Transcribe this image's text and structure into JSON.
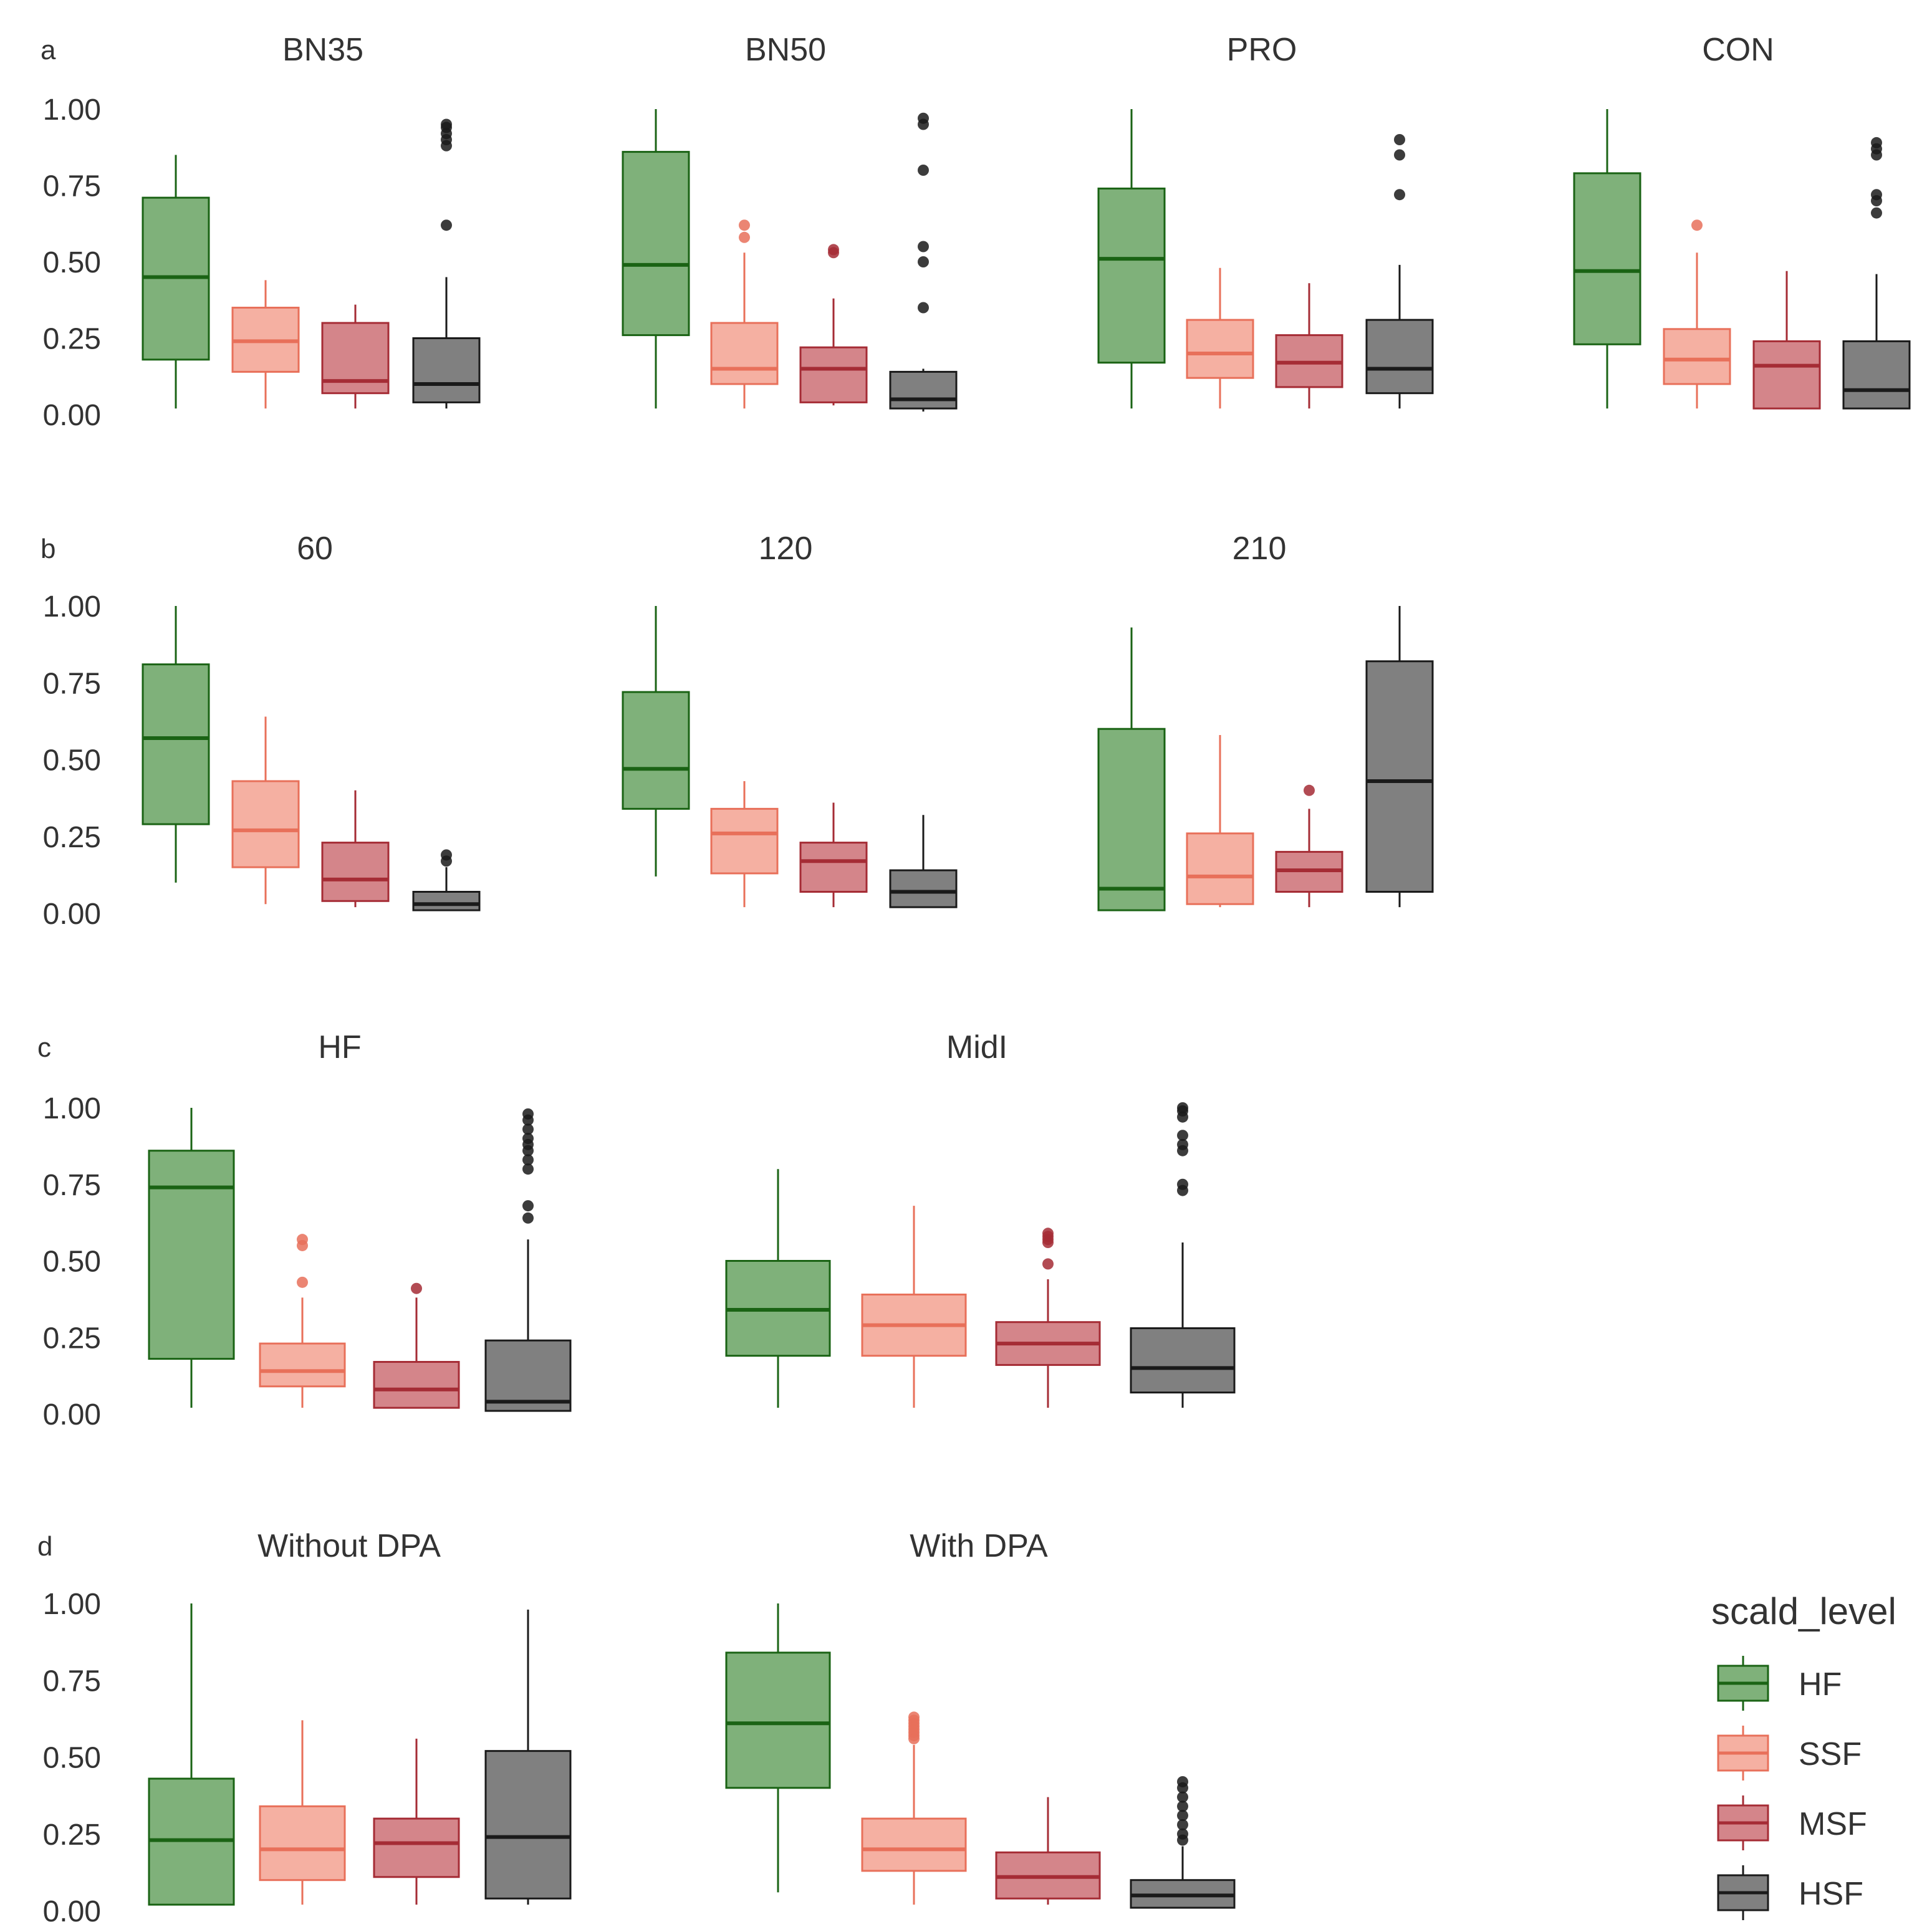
{
  "figure": {
    "legend": {
      "title": "scald_level",
      "items": [
        {
          "key": "HF",
          "label": "HF"
        },
        {
          "key": "SSF",
          "label": "SSF"
        },
        {
          "key": "MSF",
          "label": "MSF"
        },
        {
          "key": "HSF",
          "label": "HSF"
        }
      ]
    },
    "styles": {
      "HF": {
        "fill": "#7fb17a",
        "line": "#1a6314"
      },
      "SSF": {
        "fill": "#f5b0a2",
        "line": "#e8705a"
      },
      "MSF": {
        "fill": "#d4858a",
        "line": "#a52c35"
      },
      "HSF": {
        "fill": "#808080",
        "line": "#1a1a1a"
      }
    }
  },
  "chart_data": [
    {
      "type": "boxplot",
      "panel": "a",
      "ylim": [
        0,
        1
      ],
      "y_ticks": [
        "0.00",
        "0.25",
        "0.50",
        "0.75",
        "1.00"
      ],
      "facets": [
        {
          "title": "BN35",
          "boxes": [
            {
              "group": "HF",
              "lower_whisker": 0.02,
              "q1": 0.18,
              "median": 0.45,
              "q3": 0.71,
              "upper_whisker": 0.85,
              "outliers": []
            },
            {
              "group": "SSF",
              "lower_whisker": 0.02,
              "q1": 0.14,
              "median": 0.24,
              "q3": 0.35,
              "upper_whisker": 0.44,
              "outliers": []
            },
            {
              "group": "MSF",
              "lower_whisker": 0.02,
              "q1": 0.07,
              "median": 0.11,
              "q3": 0.3,
              "upper_whisker": 0.36,
              "outliers": []
            },
            {
              "group": "HSF",
              "lower_whisker": 0.02,
              "q1": 0.04,
              "median": 0.1,
              "q3": 0.25,
              "upper_whisker": 0.45,
              "outliers": [
                0.62,
                0.88,
                0.9,
                0.92,
                0.94,
                0.95
              ]
            }
          ]
        },
        {
          "title": "BN50",
          "boxes": [
            {
              "group": "HF",
              "lower_whisker": 0.02,
              "q1": 0.26,
              "median": 0.49,
              "q3": 0.86,
              "upper_whisker": 1.0,
              "outliers": []
            },
            {
              "group": "SSF",
              "lower_whisker": 0.02,
              "q1": 0.1,
              "median": 0.15,
              "q3": 0.3,
              "upper_whisker": 0.53,
              "outliers": [
                0.58,
                0.62
              ]
            },
            {
              "group": "MSF",
              "lower_whisker": 0.03,
              "q1": 0.04,
              "median": 0.15,
              "q3": 0.22,
              "upper_whisker": 0.38,
              "outliers": [
                0.53,
                0.54
              ]
            },
            {
              "group": "HSF",
              "lower_whisker": 0.01,
              "q1": 0.02,
              "median": 0.05,
              "q3": 0.14,
              "upper_whisker": 0.15,
              "outliers": [
                0.35,
                0.5,
                0.55,
                0.8,
                0.95,
                0.97
              ]
            }
          ]
        },
        {
          "title": "PRO",
          "boxes": [
            {
              "group": "HF",
              "lower_whisker": 0.02,
              "q1": 0.17,
              "median": 0.51,
              "q3": 0.74,
              "upper_whisker": 1.0,
              "outliers": []
            },
            {
              "group": "SSF",
              "lower_whisker": 0.02,
              "q1": 0.12,
              "median": 0.2,
              "q3": 0.31,
              "upper_whisker": 0.48,
              "outliers": []
            },
            {
              "group": "MSF",
              "lower_whisker": 0.02,
              "q1": 0.09,
              "median": 0.17,
              "q3": 0.26,
              "upper_whisker": 0.43,
              "outliers": []
            },
            {
              "group": "HSF",
              "lower_whisker": 0.02,
              "q1": 0.07,
              "median": 0.15,
              "q3": 0.31,
              "upper_whisker": 0.49,
              "outliers": [
                0.72,
                0.85,
                0.9
              ]
            }
          ]
        },
        {
          "title": "CON",
          "boxes": [
            {
              "group": "HF",
              "lower_whisker": 0.02,
              "q1": 0.23,
              "median": 0.47,
              "q3": 0.79,
              "upper_whisker": 1.0,
              "outliers": []
            },
            {
              "group": "SSF",
              "lower_whisker": 0.02,
              "q1": 0.1,
              "median": 0.18,
              "q3": 0.28,
              "upper_whisker": 0.53,
              "outliers": [
                0.62
              ]
            },
            {
              "group": "MSF",
              "lower_whisker": 0.02,
              "q1": 0.02,
              "median": 0.16,
              "q3": 0.24,
              "upper_whisker": 0.47,
              "outliers": []
            },
            {
              "group": "HSF",
              "lower_whisker": 0.02,
              "q1": 0.02,
              "median": 0.08,
              "q3": 0.24,
              "upper_whisker": 0.46,
              "outliers": [
                0.66,
                0.7,
                0.72,
                0.85,
                0.87,
                0.89
              ]
            }
          ]
        }
      ]
    },
    {
      "type": "boxplot",
      "panel": "b",
      "ylim": [
        0,
        1
      ],
      "y_ticks": [
        "0.00",
        "0.25",
        "0.50",
        "0.75",
        "1.00"
      ],
      "facets": [
        {
          "title": "60",
          "boxes": [
            {
              "group": "HF",
              "lower_whisker": 0.1,
              "q1": 0.29,
              "median": 0.57,
              "q3": 0.81,
              "upper_whisker": 1.0,
              "outliers": []
            },
            {
              "group": "SSF",
              "lower_whisker": 0.03,
              "q1": 0.15,
              "median": 0.27,
              "q3": 0.43,
              "upper_whisker": 0.64,
              "outliers": []
            },
            {
              "group": "MSF",
              "lower_whisker": 0.02,
              "q1": 0.04,
              "median": 0.11,
              "q3": 0.23,
              "upper_whisker": 0.4,
              "outliers": []
            },
            {
              "group": "HSF",
              "lower_whisker": 0.01,
              "q1": 0.01,
              "median": 0.03,
              "q3": 0.07,
              "upper_whisker": 0.15,
              "outliers": [
                0.17,
                0.19
              ]
            }
          ]
        },
        {
          "title": "120",
          "boxes": [
            {
              "group": "HF",
              "lower_whisker": 0.12,
              "q1": 0.34,
              "median": 0.47,
              "q3": 0.72,
              "upper_whisker": 1.0,
              "outliers": []
            },
            {
              "group": "SSF",
              "lower_whisker": 0.02,
              "q1": 0.13,
              "median": 0.26,
              "q3": 0.34,
              "upper_whisker": 0.43,
              "outliers": []
            },
            {
              "group": "MSF",
              "lower_whisker": 0.02,
              "q1": 0.07,
              "median": 0.17,
              "q3": 0.23,
              "upper_whisker": 0.36,
              "outliers": []
            },
            {
              "group": "HSF",
              "lower_whisker": 0.02,
              "q1": 0.02,
              "median": 0.07,
              "q3": 0.14,
              "upper_whisker": 0.32,
              "outliers": []
            }
          ]
        },
        {
          "title": "210",
          "boxes": [
            {
              "group": "HF",
              "lower_whisker": 0.01,
              "q1": 0.01,
              "median": 0.08,
              "q3": 0.6,
              "upper_whisker": 0.93,
              "outliers": []
            },
            {
              "group": "SSF",
              "lower_whisker": 0.02,
              "q1": 0.03,
              "median": 0.12,
              "q3": 0.26,
              "upper_whisker": 0.58,
              "outliers": []
            },
            {
              "group": "MSF",
              "lower_whisker": 0.02,
              "q1": 0.07,
              "median": 0.14,
              "q3": 0.2,
              "upper_whisker": 0.34,
              "outliers": [
                0.4
              ]
            },
            {
              "group": "HSF",
              "lower_whisker": 0.02,
              "q1": 0.07,
              "median": 0.43,
              "q3": 0.82,
              "upper_whisker": 1.0,
              "outliers": []
            }
          ]
        }
      ]
    },
    {
      "type": "boxplot",
      "panel": "c",
      "ylim": [
        0,
        1
      ],
      "y_ticks": [
        "0.00",
        "0.25",
        "0.50",
        "0.75",
        "1.00"
      ],
      "facets": [
        {
          "title": "HF",
          "boxes": [
            {
              "group": "HF",
              "lower_whisker": 0.02,
              "q1": 0.18,
              "median": 0.74,
              "q3": 0.86,
              "upper_whisker": 1.0,
              "outliers": []
            },
            {
              "group": "SSF",
              "lower_whisker": 0.02,
              "q1": 0.09,
              "median": 0.14,
              "q3": 0.23,
              "upper_whisker": 0.38,
              "outliers": [
                0.43,
                0.55,
                0.57
              ]
            },
            {
              "group": "MSF",
              "lower_whisker": 0.02,
              "q1": 0.02,
              "median": 0.08,
              "q3": 0.17,
              "upper_whisker": 0.38,
              "outliers": [
                0.41
              ]
            },
            {
              "group": "HSF",
              "lower_whisker": 0.01,
              "q1": 0.01,
              "median": 0.04,
              "q3": 0.24,
              "upper_whisker": 0.57,
              "outliers": [
                0.64,
                0.68,
                0.8,
                0.83,
                0.86,
                0.88,
                0.9,
                0.93,
                0.96,
                0.98
              ]
            }
          ]
        },
        {
          "title": "MidI",
          "boxes": [
            {
              "group": "HF",
              "lower_whisker": 0.02,
              "q1": 0.19,
              "median": 0.34,
              "q3": 0.5,
              "upper_whisker": 0.8,
              "outliers": []
            },
            {
              "group": "SSF",
              "lower_whisker": 0.02,
              "q1": 0.19,
              "median": 0.29,
              "q3": 0.39,
              "upper_whisker": 0.68,
              "outliers": []
            },
            {
              "group": "MSF",
              "lower_whisker": 0.02,
              "q1": 0.16,
              "median": 0.23,
              "q3": 0.3,
              "upper_whisker": 0.44,
              "outliers": [
                0.49,
                0.56,
                0.57,
                0.58,
                0.59
              ]
            },
            {
              "group": "HSF",
              "lower_whisker": 0.02,
              "q1": 0.07,
              "median": 0.15,
              "q3": 0.28,
              "upper_whisker": 0.56,
              "outliers": [
                0.73,
                0.75,
                0.86,
                0.88,
                0.91,
                0.97,
                0.99,
                1.0
              ]
            }
          ]
        }
      ]
    },
    {
      "type": "boxplot",
      "panel": "d",
      "ylim": [
        0,
        1
      ],
      "y_ticks": [
        "0.00",
        "0.25",
        "0.50",
        "0.75",
        "1.00"
      ],
      "facets": [
        {
          "title": "Without DPA",
          "boxes": [
            {
              "group": "HF",
              "lower_whisker": 0.02,
              "q1": 0.02,
              "median": 0.23,
              "q3": 0.43,
              "upper_whisker": 1.0,
              "outliers": []
            },
            {
              "group": "SSF",
              "lower_whisker": 0.02,
              "q1": 0.1,
              "median": 0.2,
              "q3": 0.34,
              "upper_whisker": 0.62,
              "outliers": []
            },
            {
              "group": "MSF",
              "lower_whisker": 0.02,
              "q1": 0.11,
              "median": 0.22,
              "q3": 0.3,
              "upper_whisker": 0.56,
              "outliers": []
            },
            {
              "group": "HSF",
              "lower_whisker": 0.02,
              "q1": 0.04,
              "median": 0.24,
              "q3": 0.52,
              "upper_whisker": 0.98,
              "outliers": []
            }
          ]
        },
        {
          "title": "With DPA",
          "boxes": [
            {
              "group": "HF",
              "lower_whisker": 0.06,
              "q1": 0.4,
              "median": 0.61,
              "q3": 0.84,
              "upper_whisker": 1.0,
              "outliers": []
            },
            {
              "group": "SSF",
              "lower_whisker": 0.02,
              "q1": 0.13,
              "median": 0.2,
              "q3": 0.3,
              "upper_whisker": 0.54,
              "outliers": [
                0.56,
                0.57,
                0.58,
                0.59,
                0.6,
                0.61,
                0.62,
                0.63
              ]
            },
            {
              "group": "MSF",
              "lower_whisker": 0.02,
              "q1": 0.04,
              "median": 0.11,
              "q3": 0.19,
              "upper_whisker": 0.37,
              "outliers": []
            },
            {
              "group": "HSF",
              "lower_whisker": 0.01,
              "q1": 0.01,
              "median": 0.05,
              "q3": 0.1,
              "upper_whisker": 0.21,
              "outliers": [
                0.23,
                0.25,
                0.28,
                0.31,
                0.34,
                0.37,
                0.4,
                0.42
              ]
            }
          ]
        }
      ]
    }
  ]
}
